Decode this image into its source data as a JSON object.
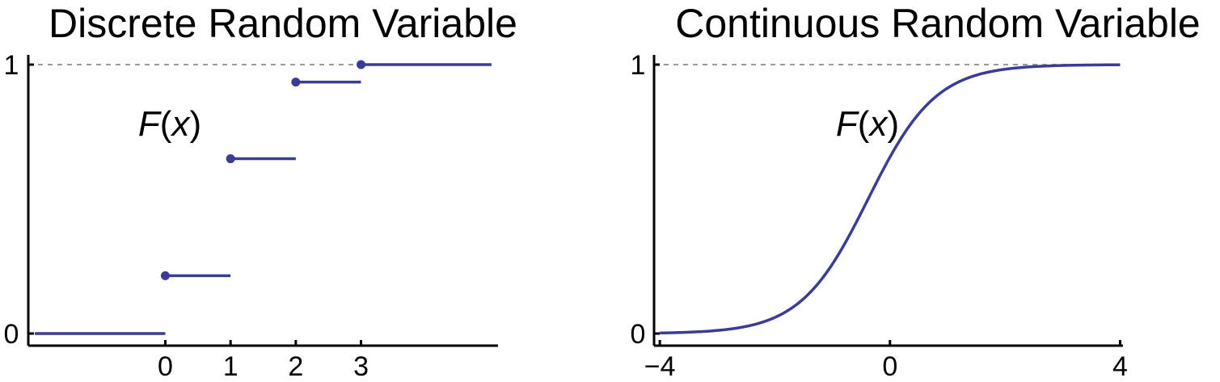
{
  "colors": {
    "series": "#3b3b98",
    "axis": "#000000",
    "reference": "#999999"
  },
  "chart_data": [
    {
      "type": "line",
      "title": "Discrete Random Variable",
      "annotation": "F(x)",
      "x_ticks": [
        "0",
        "1",
        "2",
        "3"
      ],
      "y_ticks": [
        "0",
        "1"
      ],
      "xlim": [
        -2.1,
        5.1
      ],
      "ylim": [
        0,
        1
      ],
      "reference_line_y": 1,
      "steps": [
        {
          "x_start": -2.0,
          "x_end": 0,
          "y": 0,
          "closed_dot": false
        },
        {
          "x_start": 0,
          "x_end": 1,
          "y": 0.215,
          "closed_dot": true
        },
        {
          "x_start": 1,
          "x_end": 2,
          "y": 0.65,
          "closed_dot": true
        },
        {
          "x_start": 2,
          "x_end": 3,
          "y": 0.935,
          "closed_dot": true
        },
        {
          "x_start": 3,
          "x_end": 5.0,
          "y": 1.0,
          "closed_dot": true
        }
      ]
    },
    {
      "type": "line",
      "title": "Continuous Random Variable",
      "annotation": "F(x)",
      "x_ticks": [
        "−4",
        "0",
        "4"
      ],
      "y_ticks": [
        "0",
        "1"
      ],
      "xlim": [
        -4.1,
        4.05
      ],
      "ylim": [
        0,
        1
      ],
      "reference_line_y": 1,
      "function": "logistic",
      "x": [
        -4,
        -3,
        -2.5,
        -2,
        -1.5,
        -1,
        -0.5,
        0,
        0.5,
        1,
        1.5,
        2,
        2.5,
        3,
        4
      ],
      "y": [
        0.0001,
        0.004,
        0.012,
        0.04,
        0.1,
        0.24,
        0.45,
        0.66,
        0.82,
        0.92,
        0.97,
        0.99,
        0.997,
        0.999,
        1.0
      ]
    }
  ]
}
